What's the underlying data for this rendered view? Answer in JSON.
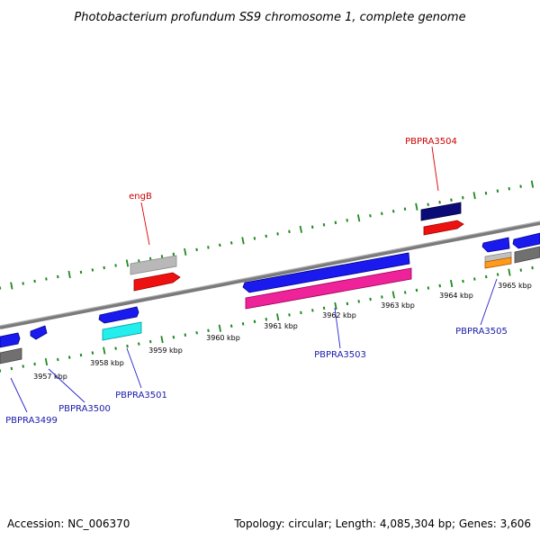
{
  "title": "Photobacterium profundum SS9 chromosome 1, complete genome",
  "footer": {
    "accession": "Accession: NC_006370",
    "summary": "Topology: circular; Length: 4,085,304 bp; Genes: 3,606"
  },
  "colors": {
    "backbone": "#8a8a8a",
    "tick": "#1f8a1f",
    "label_red": "#cc0000",
    "label_blue": "#1a1aaa"
  },
  "scale_labels": [
    "3957 kbp",
    "3958 kbp",
    "3959 kbp",
    "3960 kbp",
    "3961 kbp",
    "3962 kbp",
    "3963 kbp",
    "3964 kbp",
    "3965 kbp"
  ],
  "gene_labels": {
    "engB": "engB",
    "PBPRA3504": "PBPRA3504",
    "PBPRA3499": "PBPRA3499",
    "PBPRA3500": "PBPRA3500",
    "PBPRA3501": "PBPRA3501",
    "PBPRA3503": "PBPRA3503",
    "PBPRA3505": "PBPRA3505"
  }
}
